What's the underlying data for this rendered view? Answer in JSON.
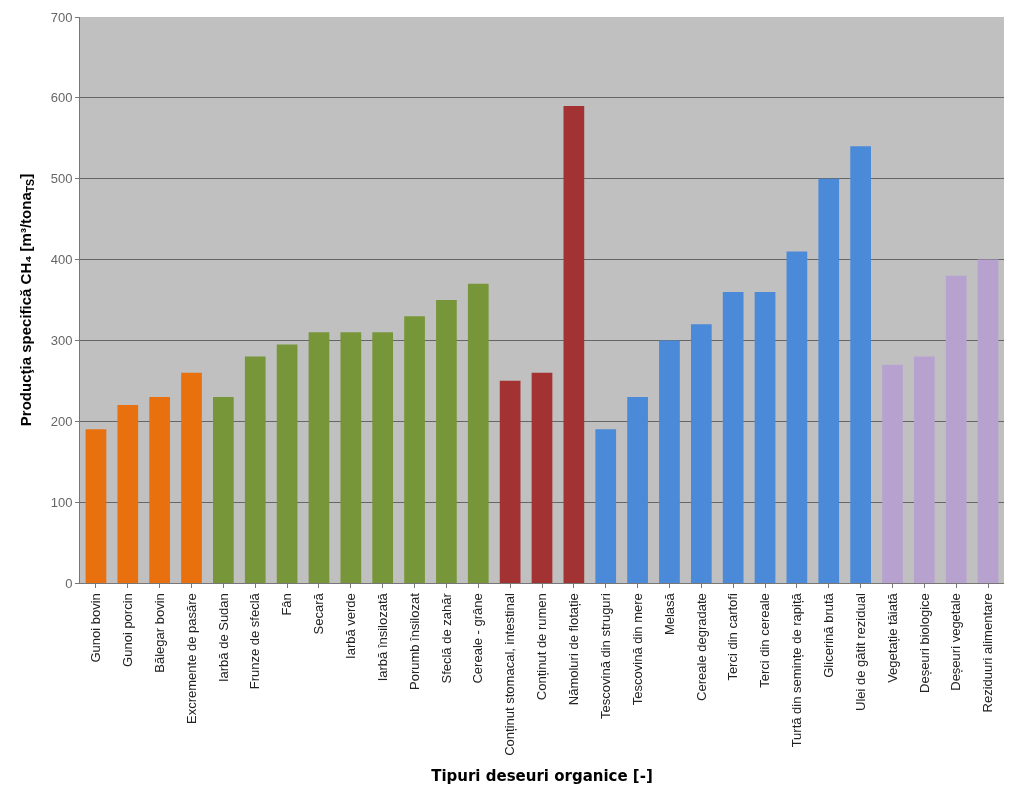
{
  "chart_data": {
    "type": "bar",
    "xlabel": "Tipuri deseuri organice [-]",
    "ylabel": "Producţia specifică CH₄ [m³/tona$_{TS}$]",
    "categories": [
      "Gunoi bovin",
      "Gunoi porcin",
      "Bălegar bovin",
      "Excremente de pasăre",
      "Iarbă de Sudan",
      "Frunze de sfeclă",
      "Fân",
      "Secară",
      "Iarbă verde",
      "Iarbă însilozată",
      "Porumb însilozat",
      "Sfeclă de zahăr",
      "Cereale - grâne",
      "Conținut stomacal, intestinal",
      "Conținut de rumen",
      "Nămoluri de flotație",
      "Tescovină din struguri",
      "Tescovină din mere",
      "Melasă",
      "Cereale degradate",
      "Terci din cartofi",
      "Terci din cereale",
      "Turtă din semințe de rapiță",
      "Glicerină brută",
      "Ulei de gătit rezidual",
      "Vegetație tăiată",
      "Deșeuri biologice",
      "Deșeuri vegetale",
      "Reziduuri alimentare"
    ],
    "values": [
      190,
      220,
      230,
      260,
      230,
      280,
      295,
      310,
      310,
      310,
      330,
      350,
      370,
      250,
      260,
      590,
      190,
      230,
      300,
      320,
      360,
      360,
      410,
      500,
      540,
      270,
      280,
      380,
      400
    ],
    "colors": [
      "#e8700f",
      "#e8700f",
      "#e8700f",
      "#e8700f",
      "#77963a",
      "#77963a",
      "#77963a",
      "#77963a",
      "#77963a",
      "#77963a",
      "#77963a",
      "#77963a",
      "#77963a",
      "#a33232",
      "#a33232",
      "#a33232",
      "#4a8ad8",
      "#4a8ad8",
      "#4a8ad8",
      "#4a8ad8",
      "#4a8ad8",
      "#4a8ad8",
      "#4a8ad8",
      "#4a8ad8",
      "#4a8ad8",
      "#b7a2cf",
      "#b7a2cf",
      "#b7a2cf",
      "#b7a2cf"
    ],
    "ylim": [
      0,
      700
    ],
    "yticks": [
      0,
      100,
      200,
      300,
      400,
      500,
      600,
      700
    ],
    "grid": "y"
  }
}
